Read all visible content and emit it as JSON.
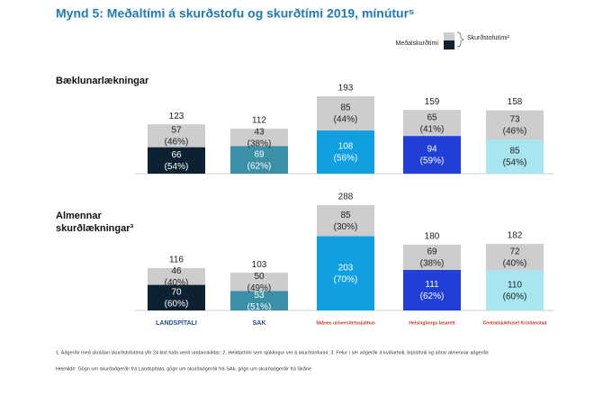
{
  "title": "Mynd 5: Meðaltími á skurðstofu og skurðtími 2019, mínútur⁵",
  "legend": [
    "Meðalskurðtími",
    "Skurðstofutími²"
  ],
  "footnotes": [
    "1. Aðgerðir með skráðan skurðstofutíma yfir 24 klst hafa verið undanskildar; 2. Heildartími sem sjúklingur ver á skurðstofunni; 3. Felur í sér aðgerðir á kviðarholi, brjóstholi og aðrar almennar aðgerðir.",
    "Heimildir: Gögn um skurðaðgerðir frá Landspítala, gögn um skurðaðgerðir frá SAk, gögn um skurðaðgerðir frá Skåne"
  ],
  "chart_data": [
    {
      "type": "bar",
      "stacked": true,
      "title": "Bæklunarlækningar",
      "totals": [
        123,
        112,
        193,
        159,
        158
      ],
      "series": [
        {
          "colors": [
            "#0c2233",
            "#3b8fa6",
            "#10a0e2",
            "#1f3fd7",
            "#a7e5ef"
          ],
          "values": [
            66,
            69,
            108,
            94,
            85
          ],
          "percent_labels": [
            "(54%)",
            "(62%)",
            "(56%)",
            "(59%)",
            "(54%)"
          ]
        },
        {
          "color": "#cdcdcd",
          "values": [
            57,
            43,
            85,
            65,
            73
          ],
          "percent_labels": [
            "(46%)",
            "(38%)",
            "(44%)",
            "(41%)",
            "(46%)"
          ]
        }
      ]
    },
    {
      "type": "bar",
      "stacked": true,
      "title": "Almennar skurðlækningar³",
      "categories": [
        "LANDSPÍTALI",
        "SAK",
        "Skånes universitetssjukhus",
        "Helsingborgs lasarett",
        "Centralsjukhuset Kristianstad"
      ],
      "totals": [
        116,
        103,
        288,
        180,
        182
      ],
      "series": [
        {
          "colors": [
            "#0c2233",
            "#3b8fa6",
            "#10a0e2",
            "#1f3fd7",
            "#a7e5ef"
          ],
          "values": [
            70,
            53,
            203,
            111,
            110
          ],
          "percent_labels": [
            "(60%)",
            "(51%)",
            "(70%)",
            "(62%)",
            "(60%)"
          ]
        },
        {
          "color": "#cdcdcd",
          "values": [
            46,
            50,
            85,
            69,
            72
          ],
          "percent_labels": [
            "(40%)",
            "(49%)",
            "(30%)",
            "(38%)",
            "(40%)"
          ]
        }
      ]
    }
  ]
}
